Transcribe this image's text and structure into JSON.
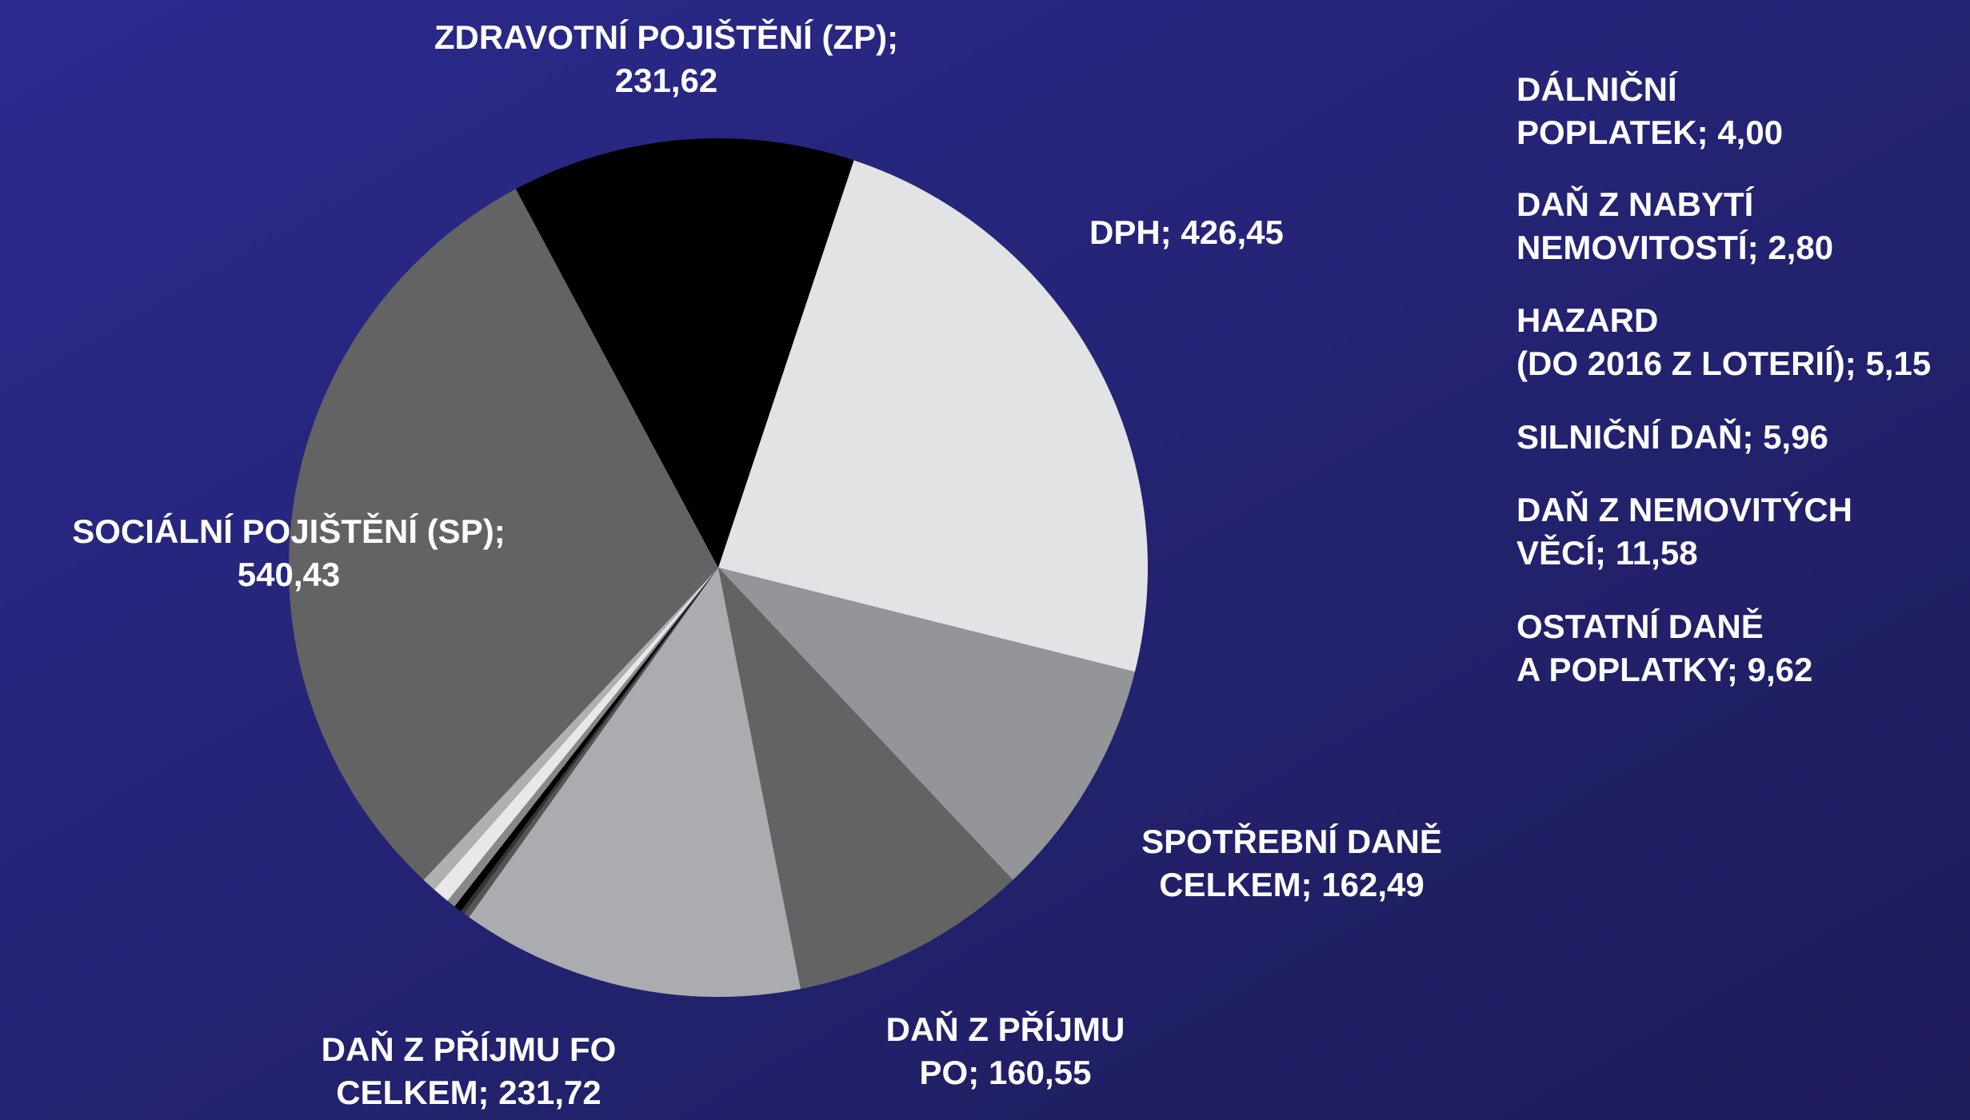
{
  "chart_data": {
    "type": "pie",
    "categories": [
      [
        "DPH;"
      ],
      [
        "SPOTŘEBNÍ DANĚ",
        "CELKEM;"
      ],
      [
        "DAŇ Z PŘÍJMU",
        "PO;"
      ],
      [
        "DAŇ Z PŘÍJMU FO",
        "CELKEM;"
      ],
      [
        "DÁLNIČNÍ",
        "POPLATEK;"
      ],
      [
        "DAŇ Z NABYTÍ",
        "NEMOVITOSTÍ;"
      ],
      [
        "HAZARD",
        "(DO 2016 Z LOTERIÍ);"
      ],
      [
        "SILNIČNÍ DAŇ;"
      ],
      [
        "DAŇ Z NEMOVITÝCH",
        "VĚCÍ;"
      ],
      [
        "OSTATNÍ DANĚ",
        "A POPLATKY;"
      ],
      [
        "SOCIÁLNÍ POJIŠTĚNÍ (SP);"
      ],
      [
        "ZDRAVOTNÍ POJIŠTĚNÍ (ZP);"
      ]
    ],
    "values": [
      426.45,
      162.49,
      160.55,
      231.72,
      4.0,
      2.8,
      5.15,
      5.96,
      11.58,
      9.62,
      540.43,
      231.62
    ],
    "value_labels": [
      "426,45",
      "162,49",
      "160,55",
      "231,72",
      "4,00",
      "2,80",
      "5,15",
      "5,96",
      "11,58",
      "9,62",
      "540,43",
      "231,62"
    ],
    "colors": [
      "#e2e3e5",
      "#949598",
      "#636363",
      "#abacaf",
      "#555555",
      "#333333",
      "#000000",
      "#888888",
      "#e8e8e8",
      "#b0b0b0",
      "#636363",
      "#000000"
    ]
  }
}
